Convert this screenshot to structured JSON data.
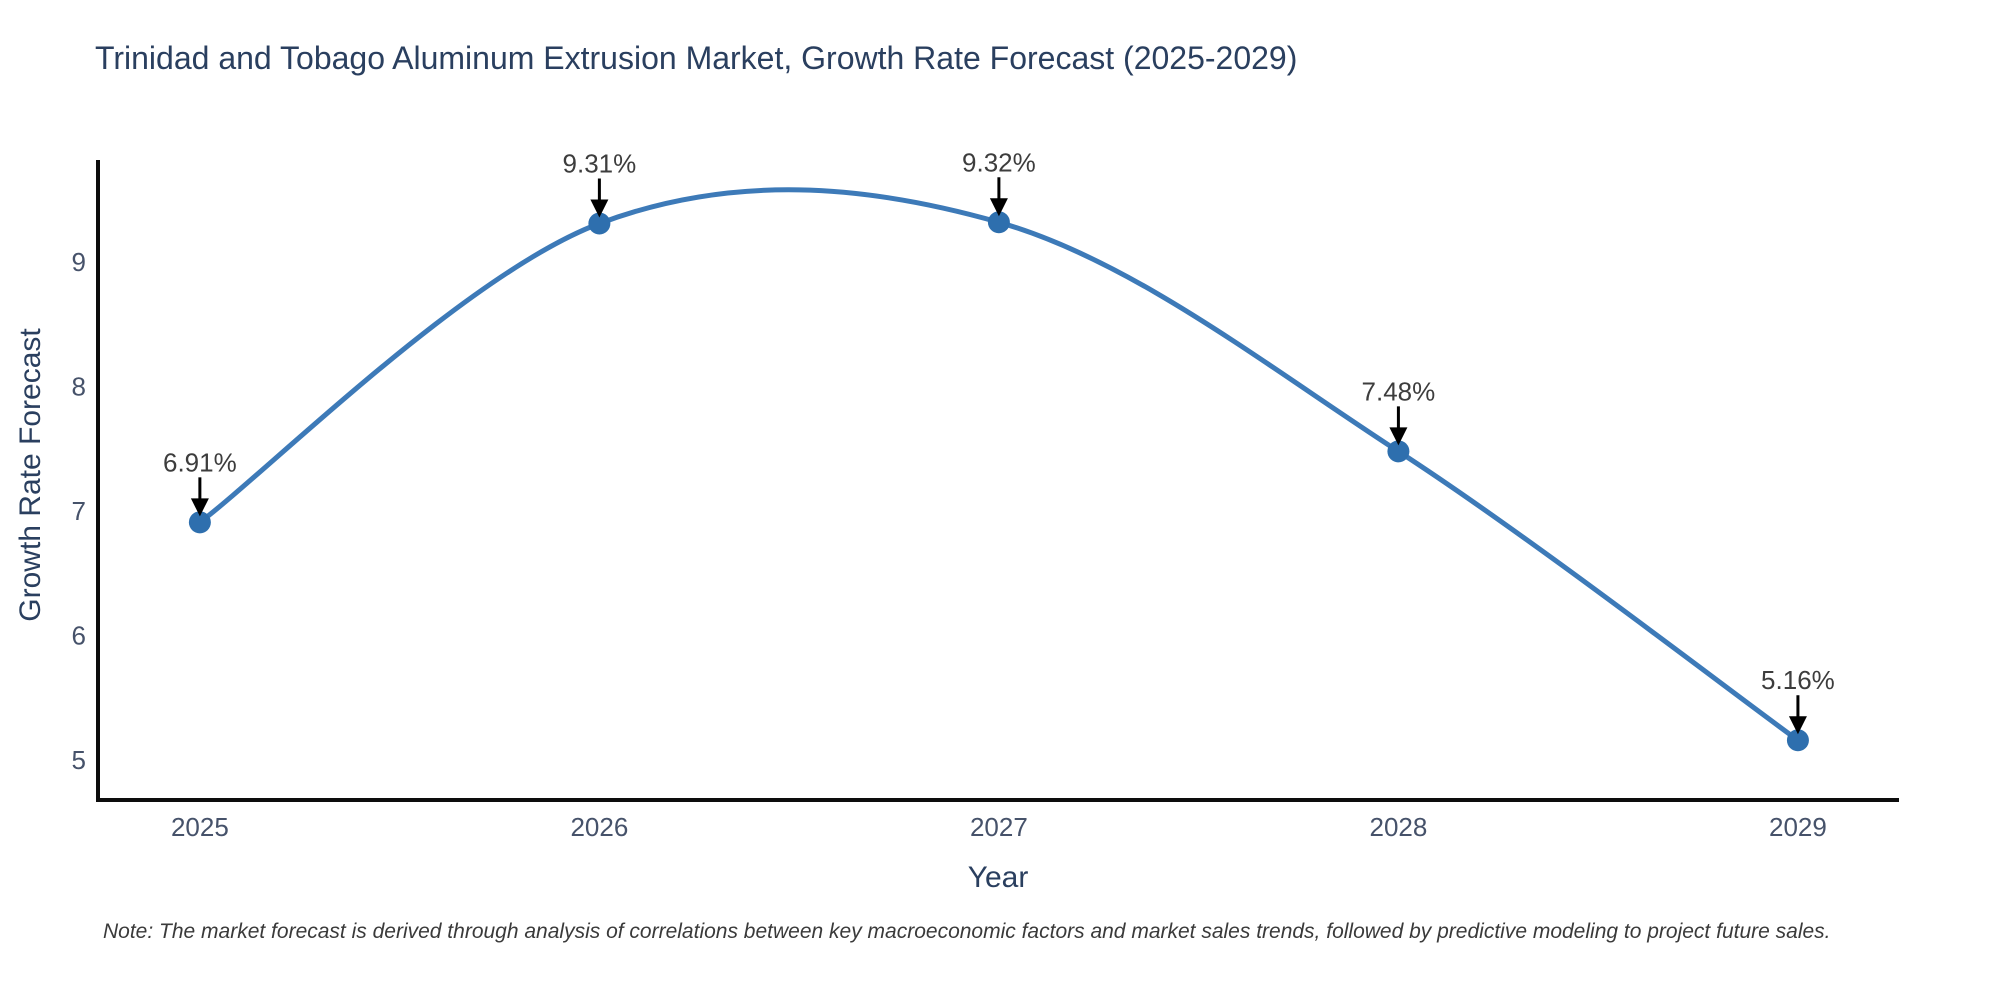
{
  "title": "Trinidad and Tobago Aluminum Extrusion Market, Growth Rate Forecast (2025-2029)",
  "note": "Note: The market forecast is derived through analysis of correlations between key macroeconomic factors and market sales trends, followed by predictive modeling to project future sales.",
  "chart_data": {
    "type": "line",
    "line_shape": "spline",
    "title": "Trinidad and Tobago Aluminum Extrusion Market, Growth Rate Forecast (2025-2029)",
    "xlabel": "Year",
    "ylabel": "Growth Rate Forecast",
    "x": [
      2025,
      2026,
      2027,
      2028,
      2029
    ],
    "y": [
      6.91,
      9.31,
      9.32,
      7.48,
      5.16
    ],
    "point_labels": [
      "6.91%",
      "9.31%",
      "9.32%",
      "7.48%",
      "5.16%"
    ],
    "xticks": [
      2025,
      2026,
      2027,
      2028,
      2029
    ],
    "yticks": [
      5,
      6,
      7,
      8,
      9
    ],
    "xlim": [
      2024.745,
      2029.253
    ],
    "ylim": [
      4.68,
      9.82
    ],
    "grid": false,
    "legend": false,
    "markers": true,
    "annotations_arrow": "down",
    "colors": {
      "line": "#3d7ab8",
      "marker": "#2e6fae",
      "axis": "#0d0d0d",
      "title": "#2a3f5f",
      "tick": "#46526a",
      "annotation": "#3d3d3d",
      "arrow": "#000000",
      "note": "#3a3a3a",
      "background": "#ffffff"
    }
  }
}
